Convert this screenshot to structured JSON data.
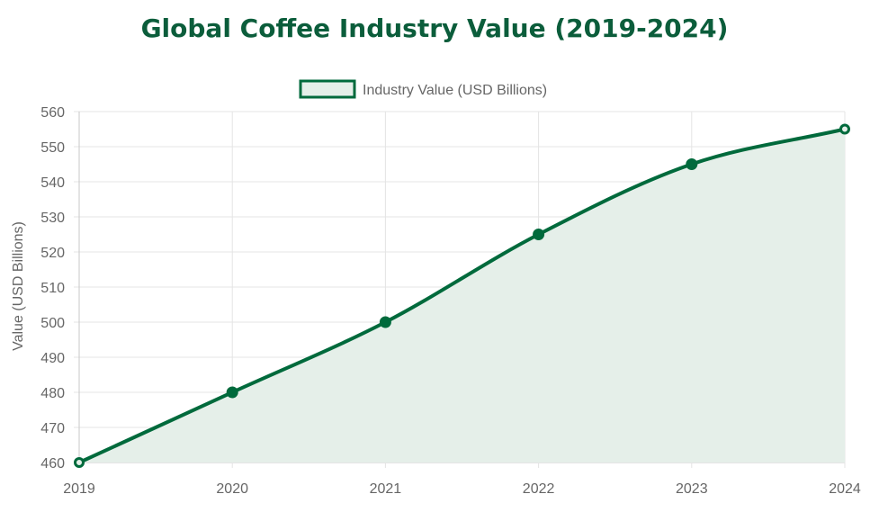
{
  "colors": {
    "title": "#0b5d3b",
    "line": "#006a3c",
    "fill": "#e5efe9",
    "grid": "#e4e4e4",
    "axis": "#c9c9c9",
    "text": "#666666"
  },
  "chart_data": {
    "type": "area",
    "title": "Global Coffee Industry Value (2019-2024)",
    "xlabel": "",
    "ylabel": "Value (USD Billions)",
    "categories": [
      "2019",
      "2020",
      "2021",
      "2022",
      "2023",
      "2024"
    ],
    "series": [
      {
        "name": "Industry Value (USD Billions)",
        "values": [
          460,
          480,
          500,
          525,
          545,
          555
        ]
      }
    ],
    "ylim": [
      460,
      560
    ],
    "ystep": 10,
    "grid": true,
    "legend_position": "top-center"
  }
}
